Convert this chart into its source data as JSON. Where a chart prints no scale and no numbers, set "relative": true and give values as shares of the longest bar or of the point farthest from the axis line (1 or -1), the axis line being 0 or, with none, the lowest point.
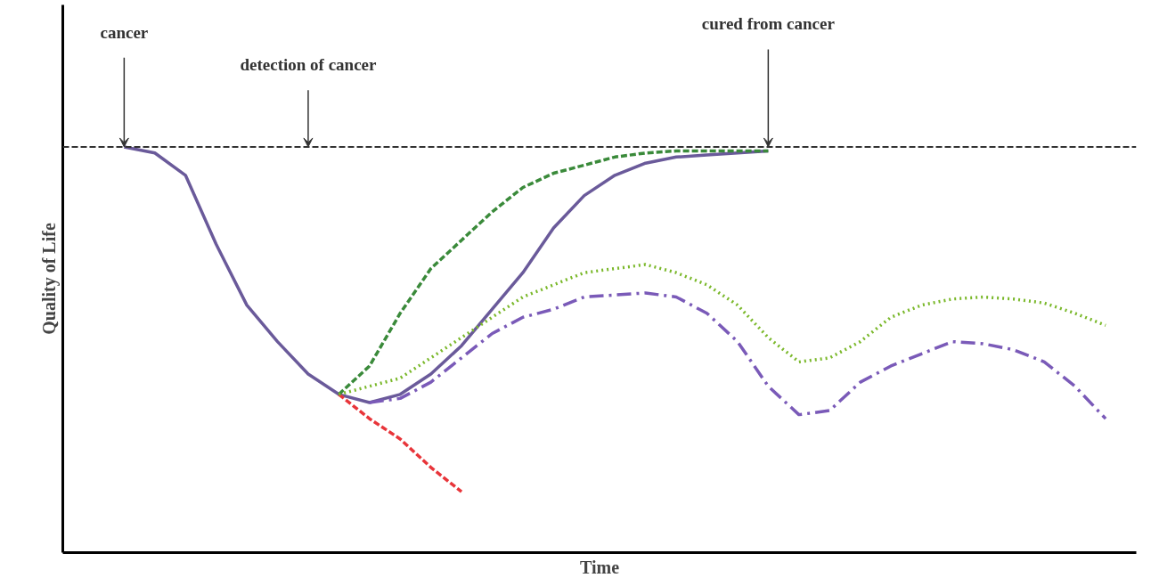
{
  "chart_data": {
    "type": "line",
    "relative": true,
    "xlabel": "Time",
    "ylabel": "Quality of Life",
    "categories": [
      null,
      null,
      null,
      null,
      null,
      null,
      null,
      null,
      null,
      null,
      null,
      null,
      null,
      null,
      null,
      null,
      null,
      null,
      null,
      null,
      null,
      null,
      null,
      null,
      null,
      null,
      null,
      null,
      null,
      null,
      null,
      null,
      null,
      null
    ],
    "series": [
      {
        "color": "#6a5a9a",
        "line_style": "solid",
        "values": [
          null,
          1.0,
          0.985,
          0.93,
          0.76,
          0.61,
          0.52,
          0.44,
          0.39,
          0.37,
          0.39,
          0.44,
          0.51,
          0.6,
          0.69,
          0.8,
          0.88,
          0.93,
          0.96,
          0.975,
          0.98,
          0.985,
          0.99,
          null,
          null,
          null,
          null,
          null,
          null,
          null,
          null,
          null,
          null,
          null
        ]
      },
      {
        "color": "#e8353a",
        "line_style": "dashed",
        "values": [
          null,
          null,
          null,
          null,
          null,
          null,
          null,
          null,
          0.39,
          0.33,
          0.28,
          0.21,
          0.15,
          null,
          null,
          null,
          null,
          null,
          null,
          null,
          null,
          null,
          null,
          null,
          null,
          null,
          null,
          null,
          null,
          null,
          null,
          null,
          null,
          null
        ]
      },
      {
        "color": "#3a8a3a",
        "line_style": "dashed",
        "values": [
          null,
          null,
          null,
          null,
          null,
          null,
          null,
          null,
          0.39,
          0.46,
          0.59,
          0.7,
          0.77,
          0.84,
          0.9,
          0.935,
          0.955,
          0.975,
          0.985,
          0.99,
          0.99,
          0.99,
          0.99,
          null,
          null,
          null,
          null,
          null,
          null,
          null,
          null,
          null,
          null,
          null
        ]
      },
      {
        "color": "#7ab82a",
        "line_style": "dotted",
        "values": [
          null,
          null,
          null,
          null,
          null,
          null,
          null,
          null,
          0.39,
          0.41,
          0.43,
          0.48,
          0.53,
          0.58,
          0.63,
          0.66,
          0.69,
          0.7,
          0.71,
          0.69,
          0.66,
          0.61,
          0.53,
          0.47,
          0.48,
          0.52,
          0.58,
          0.61,
          0.625,
          0.63,
          0.625,
          0.615,
          0.59,
          0.56
        ]
      },
      {
        "color": "#7a5ab8",
        "line_style": "dashdot",
        "values": [
          null,
          null,
          null,
          null,
          null,
          null,
          null,
          null,
          null,
          0.37,
          0.38,
          0.42,
          0.48,
          0.54,
          0.58,
          0.6,
          0.63,
          0.635,
          0.64,
          0.63,
          0.59,
          0.52,
          0.41,
          0.34,
          0.35,
          0.42,
          0.46,
          0.49,
          0.52,
          0.515,
          0.5,
          0.47,
          0.41,
          0.33
        ]
      }
    ],
    "ref_lines": [
      {
        "axis": "y",
        "value": 1.0,
        "color": "#333333",
        "line_style": "dashed"
      }
    ],
    "annotations": [
      "cancer",
      "detection of cancer",
      "cured from cancer"
    ]
  }
}
